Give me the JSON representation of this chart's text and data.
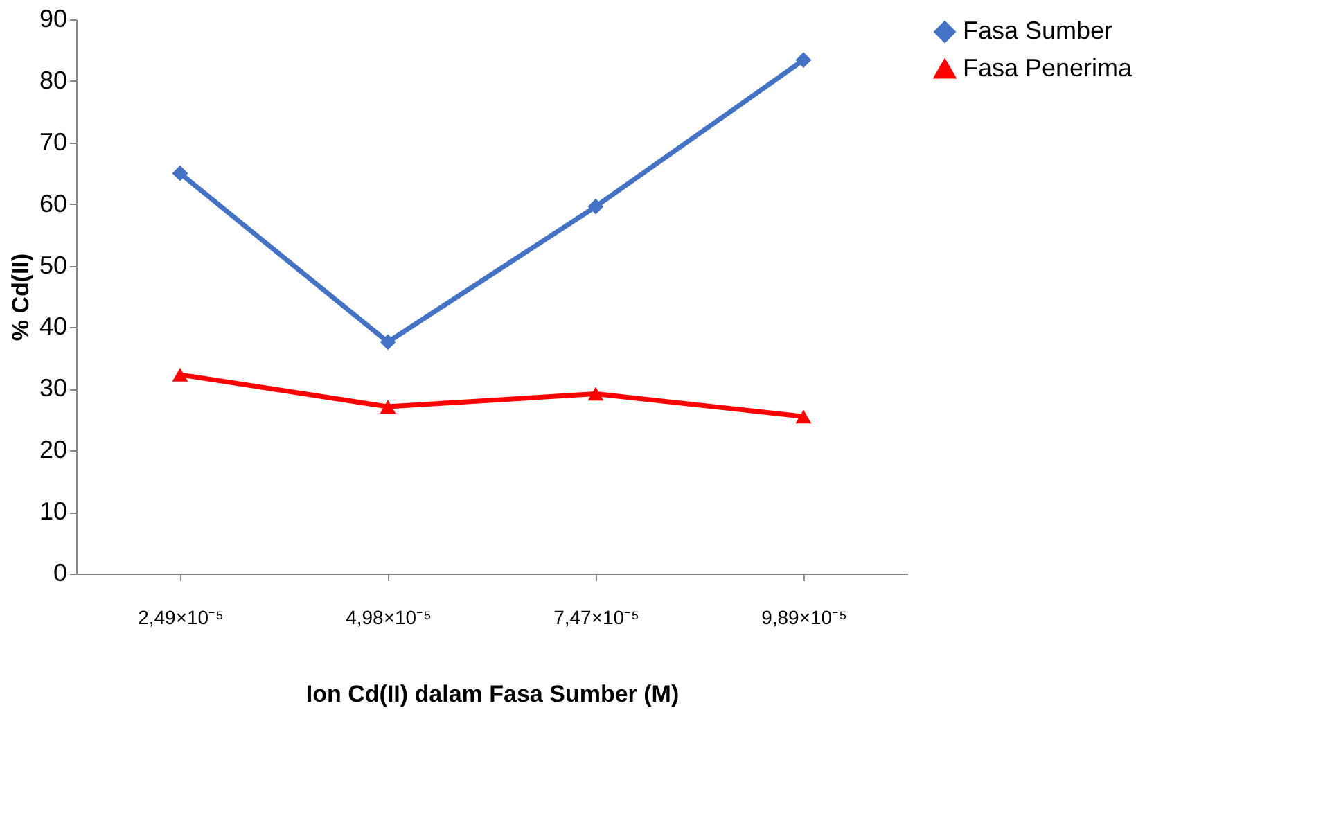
{
  "chart_data": {
    "type": "line",
    "xlabel": "Ion Cd(II) dalam Fasa Sumber (M)",
    "ylabel": "% Cd(II)",
    "categories": [
      "2,49×10⁻⁵",
      "4,98×10⁻⁵",
      "7,47×10⁻⁵",
      "9,89×10⁻⁵"
    ],
    "series": [
      {
        "name": "Fasa Sumber",
        "color": "#4472c4",
        "marker": "diamond",
        "values": [
          65.0,
          37.6,
          59.6,
          83.4
        ]
      },
      {
        "name": "Fasa Penerima",
        "color": "#ff0000",
        "marker": "triangle",
        "values": [
          32.3,
          27.1,
          29.2,
          25.5
        ]
      }
    ],
    "ylim": [
      0,
      90
    ],
    "yticks": [
      0,
      10,
      20,
      30,
      40,
      50,
      60,
      70,
      80,
      90
    ],
    "grid": false,
    "legend": "right",
    "line_style": "solid"
  }
}
